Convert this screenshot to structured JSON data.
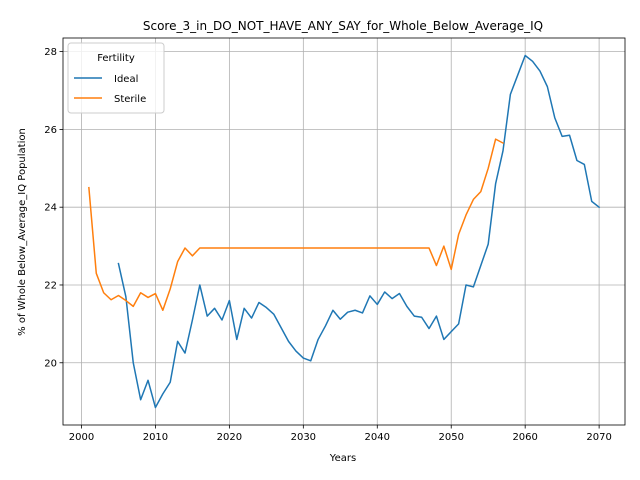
{
  "chart_data": {
    "type": "line",
    "title": "Score_3_in_DO_NOT_HAVE_ANY_SAY_for_Whole_Below_Average_IQ",
    "xlabel": "Years",
    "ylabel": "% of Whole Below_Average_IQ Population",
    "xlim": [
      1997.5,
      2073.5
    ],
    "ylim": [
      18.4,
      28.35
    ],
    "x_ticks": [
      2000,
      2010,
      2020,
      2030,
      2040,
      2050,
      2060,
      2070
    ],
    "y_ticks": [
      20,
      22,
      24,
      26,
      28
    ],
    "grid": true,
    "legend": {
      "title": "Fertility",
      "position": "upper-left"
    },
    "series": [
      {
        "name": "Ideal",
        "color": "#1f77b4",
        "x": [
          2005,
          2006,
          2007,
          2008,
          2009,
          2010,
          2011,
          2012,
          2013,
          2014,
          2015,
          2016,
          2017,
          2018,
          2019,
          2020,
          2021,
          2022,
          2023,
          2024,
          2025,
          2026,
          2027,
          2028,
          2029,
          2030,
          2031,
          2032,
          2033,
          2034,
          2035,
          2036,
          2037,
          2038,
          2039,
          2040,
          2041,
          2042,
          2043,
          2044,
          2045,
          2046,
          2047,
          2048,
          2049,
          2050,
          2051,
          2052,
          2053,
          2054,
          2055,
          2056,
          2057,
          2058,
          2059,
          2060,
          2061,
          2062,
          2063,
          2064,
          2065,
          2066,
          2067,
          2068,
          2069,
          2070
        ],
        "y": [
          22.55,
          21.7,
          20.0,
          19.05,
          19.55,
          18.85,
          19.2,
          19.5,
          20.55,
          20.25,
          21.1,
          22.0,
          21.2,
          21.4,
          21.1,
          21.6,
          20.6,
          21.4,
          21.15,
          21.55,
          21.42,
          21.25,
          20.9,
          20.55,
          20.3,
          20.12,
          20.05,
          20.6,
          20.95,
          21.35,
          21.12,
          21.3,
          21.35,
          21.28,
          21.72,
          21.5,
          21.82,
          21.65,
          21.78,
          21.45,
          21.2,
          21.17,
          20.88,
          21.2,
          20.6,
          20.8,
          21.0,
          22.0,
          21.95,
          22.5,
          23.05,
          24.6,
          25.45,
          26.9,
          27.4,
          27.9,
          27.75,
          27.5,
          27.1,
          26.3,
          25.82,
          25.85,
          25.2,
          25.1,
          24.15,
          24.0
        ]
      },
      {
        "name": "Sterile",
        "color": "#ff7f0e",
        "x": [
          2001,
          2002,
          2003,
          2004,
          2005,
          2006,
          2007,
          2008,
          2009,
          2010,
          2011,
          2012,
          2013,
          2014,
          2015,
          2016,
          2017,
          2018,
          2019,
          2020,
          2021,
          2022,
          2023,
          2024,
          2025,
          2026,
          2027,
          2028,
          2029,
          2030,
          2031,
          2032,
          2033,
          2034,
          2035,
          2036,
          2037,
          2038,
          2039,
          2040,
          2041,
          2042,
          2043,
          2044,
          2045,
          2046,
          2047,
          2048,
          2049,
          2050,
          2051,
          2052,
          2053,
          2054,
          2055,
          2056,
          2057
        ],
        "y": [
          24.5,
          22.3,
          21.8,
          21.62,
          21.73,
          21.6,
          21.45,
          21.8,
          21.68,
          21.78,
          21.35,
          21.9,
          22.6,
          22.95,
          22.75,
          22.95,
          22.95,
          22.95,
          22.95,
          22.95,
          22.95,
          22.95,
          22.95,
          22.95,
          22.95,
          22.95,
          22.95,
          22.95,
          22.95,
          22.95,
          22.95,
          22.95,
          22.95,
          22.95,
          22.95,
          22.95,
          22.95,
          22.95,
          22.95,
          22.95,
          22.95,
          22.95,
          22.95,
          22.95,
          22.95,
          22.95,
          22.95,
          22.5,
          23.0,
          22.4,
          23.3,
          23.8,
          24.2,
          24.4,
          25.0,
          25.75,
          25.65
        ]
      }
    ]
  }
}
